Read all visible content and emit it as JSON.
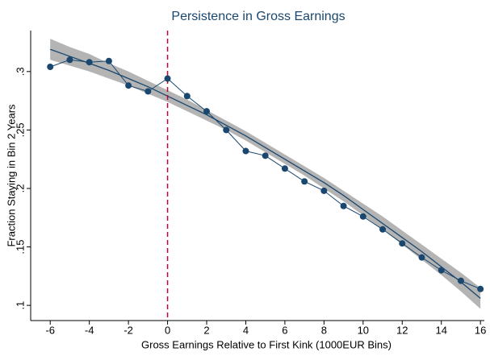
{
  "chart_data": {
    "type": "line",
    "title": "Persistence in Gross Earnings",
    "x_label": "Gross Earnings Relative to First Kink (1000EUR Bins)",
    "y_label": "Fraction Staying in Bin 2 Years",
    "x": [
      -6,
      -5,
      -4,
      -3,
      -2,
      -1,
      0,
      1,
      2,
      3,
      4,
      5,
      6,
      7,
      8,
      9,
      10,
      11,
      12,
      13,
      14,
      15,
      16
    ],
    "series": [
      {
        "color": "#1a476f",
        "values": [
          0.304,
          0.31,
          0.308,
          0.309,
          0.288,
          0.283,
          0.294,
          0.279,
          0.266,
          0.25,
          0.232,
          0.228,
          0.217,
          0.206,
          0.198,
          0.185,
          0.176,
          0.165,
          0.153,
          0.141,
          0.13,
          0.121,
          0.114
        ]
      }
    ],
    "fit": {
      "color": "#1a476f",
      "values": [
        0.319,
        0.313,
        0.307,
        0.301,
        0.294,
        0.287,
        0.279,
        0.271,
        0.263,
        0.254,
        0.245,
        0.235,
        0.225,
        0.215,
        0.205,
        0.194,
        0.182,
        0.17,
        0.158,
        0.146,
        0.133,
        0.12,
        0.106
      ]
    },
    "ci": {
      "color": "#b4b4b4",
      "upper": [
        0.328,
        0.321,
        0.315,
        0.307,
        0.3,
        0.292,
        0.284,
        0.276,
        0.267,
        0.258,
        0.249,
        0.239,
        0.229,
        0.219,
        0.209,
        0.198,
        0.187,
        0.176,
        0.164,
        0.152,
        0.14,
        0.128,
        0.115
      ],
      "lower": [
        0.31,
        0.305,
        0.3,
        0.294,
        0.288,
        0.281,
        0.274,
        0.266,
        0.258,
        0.25,
        0.241,
        0.231,
        0.221,
        0.211,
        0.2,
        0.189,
        0.177,
        0.165,
        0.152,
        0.139,
        0.126,
        0.112,
        0.097
      ]
    },
    "vline": {
      "value": 0,
      "color": "#c10534"
    },
    "xlim": [
      -7,
      16.2
    ],
    "ylim": [
      0.087,
      0.335
    ],
    "xticks": [
      -6,
      -4,
      -2,
      0,
      2,
      4,
      6,
      8,
      10,
      12,
      14,
      16
    ],
    "yticks": [
      {
        "value": 0.1,
        "label": ".1"
      },
      {
        "value": 0.15,
        "label": ".15"
      },
      {
        "value": 0.2,
        "label": ".2"
      },
      {
        "value": 0.25,
        "label": ".25"
      },
      {
        "value": 0.3,
        "label": ".3"
      }
    ]
  }
}
